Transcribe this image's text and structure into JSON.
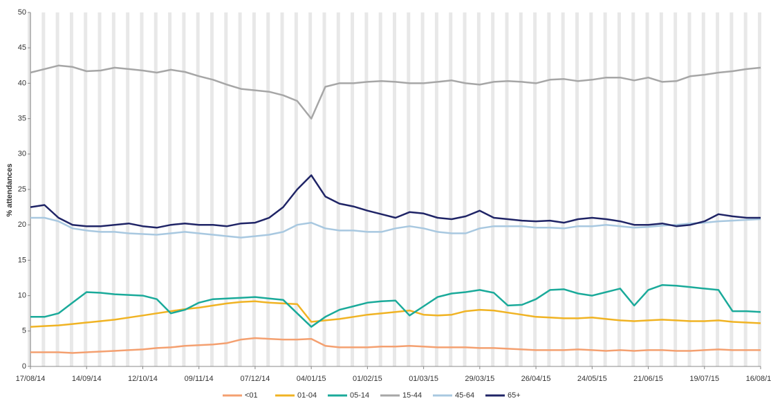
{
  "chart_data": {
    "type": "line",
    "y_label": "% attendances",
    "x": [
      "17/08/14",
      "24/08/14",
      "31/08/14",
      "07/09/14",
      "14/09/14",
      "21/09/14",
      "28/09/14",
      "05/10/14",
      "12/10/14",
      "19/10/14",
      "26/10/14",
      "02/11/14",
      "09/11/14",
      "16/11/14",
      "23/11/14",
      "30/11/14",
      "07/12/14",
      "14/12/14",
      "21/12/14",
      "28/12/14",
      "04/01/15",
      "11/01/15",
      "18/01/15",
      "25/01/15",
      "01/02/15",
      "08/02/15",
      "15/02/15",
      "22/02/15",
      "01/03/15",
      "08/03/15",
      "15/03/15",
      "22/03/15",
      "29/03/15",
      "05/04/15",
      "12/04/15",
      "19/04/15",
      "26/04/15",
      "03/05/15",
      "10/05/15",
      "17/05/15",
      "24/05/15",
      "31/05/15",
      "07/06/15",
      "14/06/15",
      "21/06/15",
      "28/06/15",
      "05/07/15",
      "12/07/15",
      "19/07/15",
      "26/07/15",
      "02/08/15",
      "09/08/15",
      "16/08/15"
    ],
    "xticks": [
      "17/08/14",
      "14/09/14",
      "12/10/14",
      "09/11/14",
      "07/12/14",
      "04/01/15",
      "01/02/15",
      "01/03/15",
      "29/03/15",
      "26/04/15",
      "24/05/15",
      "21/06/15",
      "19/07/15",
      "16/08/15"
    ],
    "ylim": [
      0,
      50
    ],
    "yticks": [
      0,
      5,
      10,
      15,
      20,
      25,
      30,
      35,
      40,
      45,
      50
    ],
    "series": [
      {
        "name": "<01",
        "color": "#f4a070",
        "values": [
          2.0,
          2.0,
          2.0,
          1.9,
          2.0,
          2.1,
          2.2,
          2.3,
          2.4,
          2.6,
          2.7,
          2.9,
          3.0,
          3.1,
          3.3,
          3.8,
          4.0,
          3.9,
          3.8,
          3.8,
          3.9,
          2.9,
          2.7,
          2.7,
          2.7,
          2.8,
          2.8,
          2.9,
          2.8,
          2.7,
          2.7,
          2.7,
          2.6,
          2.6,
          2.5,
          2.4,
          2.3,
          2.3,
          2.3,
          2.4,
          2.3,
          2.2,
          2.3,
          2.2,
          2.3,
          2.3,
          2.2,
          2.2,
          2.3,
          2.4,
          2.3,
          2.3,
          2.3
        ]
      },
      {
        "name": "01-04",
        "color": "#f0b323",
        "values": [
          5.6,
          5.7,
          5.8,
          6.0,
          6.2,
          6.4,
          6.6,
          6.9,
          7.2,
          7.5,
          7.8,
          8.1,
          8.3,
          8.6,
          8.9,
          9.1,
          9.2,
          9.0,
          8.9,
          8.8,
          6.3,
          6.5,
          6.7,
          7.0,
          7.3,
          7.5,
          7.7,
          7.9,
          7.3,
          7.2,
          7.3,
          7.8,
          8.0,
          7.9,
          7.6,
          7.3,
          7.0,
          6.9,
          6.8,
          6.8,
          6.9,
          6.7,
          6.5,
          6.4,
          6.5,
          6.6,
          6.5,
          6.4,
          6.4,
          6.5,
          6.3,
          6.2,
          6.1
        ]
      },
      {
        "name": "05-14",
        "color": "#1aaa9a",
        "values": [
          7.0,
          7.0,
          7.5,
          9.0,
          10.5,
          10.4,
          10.2,
          10.1,
          10.0,
          9.5,
          7.5,
          8.0,
          9.0,
          9.5,
          9.6,
          9.7,
          9.8,
          9.6,
          9.4,
          7.5,
          5.6,
          7.0,
          8.0,
          8.5,
          9.0,
          9.2,
          9.3,
          7.2,
          8.5,
          9.8,
          10.3,
          10.5,
          10.8,
          10.4,
          8.6,
          8.7,
          9.5,
          10.8,
          10.9,
          10.3,
          10.0,
          10.5,
          11.0,
          8.6,
          10.8,
          11.5,
          11.4,
          11.2,
          11.0,
          10.8,
          7.8,
          7.8,
          7.7
        ]
      },
      {
        "name": "15-44",
        "color": "#a6a6a6",
        "values": [
          41.5,
          42.0,
          42.5,
          42.3,
          41.7,
          41.8,
          42.2,
          42.0,
          41.8,
          41.5,
          41.9,
          41.6,
          41.0,
          40.5,
          39.8,
          39.2,
          39.0,
          38.8,
          38.3,
          37.5,
          35.0,
          39.5,
          40.0,
          40.0,
          40.2,
          40.3,
          40.2,
          40.0,
          40.0,
          40.2,
          40.4,
          40.0,
          39.8,
          40.2,
          40.3,
          40.2,
          40.0,
          40.5,
          40.6,
          40.3,
          40.5,
          40.8,
          40.8,
          40.4,
          40.8,
          40.2,
          40.3,
          41.0,
          41.2,
          41.5,
          41.7,
          42.0,
          42.2
        ]
      },
      {
        "name": "45-64",
        "color": "#a8c8e0",
        "values": [
          21.0,
          21.0,
          20.5,
          19.5,
          19.2,
          19.0,
          19.0,
          18.8,
          18.7,
          18.6,
          18.8,
          19.0,
          18.8,
          18.6,
          18.4,
          18.2,
          18.4,
          18.6,
          19.0,
          20.0,
          20.3,
          19.5,
          19.2,
          19.2,
          19.0,
          19.0,
          19.5,
          19.8,
          19.5,
          19.0,
          18.8,
          18.8,
          19.5,
          19.8,
          19.8,
          19.8,
          19.6,
          19.6,
          19.5,
          19.8,
          19.8,
          20.0,
          19.8,
          19.6,
          19.7,
          19.9,
          20.0,
          20.2,
          20.3,
          20.5,
          20.6,
          20.7,
          20.8
        ]
      },
      {
        "name": "65+",
        "color": "#1f2466",
        "values": [
          22.5,
          22.8,
          21.0,
          20.0,
          19.8,
          19.8,
          20.0,
          20.2,
          19.8,
          19.6,
          20.0,
          20.2,
          20.0,
          20.0,
          19.8,
          20.2,
          20.3,
          21.0,
          22.5,
          25.0,
          27.0,
          24.0,
          23.0,
          22.6,
          22.0,
          21.5,
          21.0,
          21.8,
          21.6,
          21.0,
          20.8,
          21.2,
          22.0,
          21.0,
          20.8,
          20.6,
          20.5,
          20.6,
          20.3,
          20.8,
          21.0,
          20.8,
          20.5,
          20.0,
          20.0,
          20.2,
          19.8,
          20.0,
          20.5,
          21.5,
          21.2,
          21.0,
          21.0
        ]
      }
    ]
  }
}
